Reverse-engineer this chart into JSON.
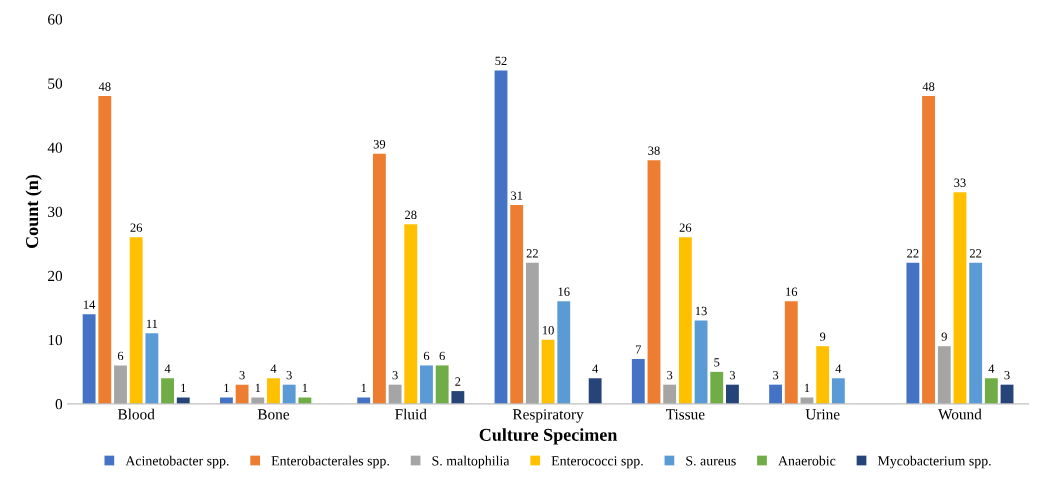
{
  "chart_data": {
    "type": "bar",
    "xlabel": "Culture Specimen",
    "ylabel": "Count (n)",
    "categories": [
      "Blood",
      "Bone",
      "Fluid",
      "Respiratory",
      "Tissue",
      "Urine",
      "Wound"
    ],
    "series": [
      {
        "name": "Acinetobacter spp.",
        "color": "#4472c4",
        "values": [
          14,
          1,
          1,
          52,
          7,
          3,
          22
        ]
      },
      {
        "name": "Enterobacterales spp.",
        "color": "#ed7d31",
        "values": [
          48,
          3,
          39,
          31,
          38,
          16,
          48
        ]
      },
      {
        "name": "S. maltophilia",
        "color": "#a5a5a5",
        "values": [
          6,
          1,
          3,
          22,
          3,
          1,
          9
        ]
      },
      {
        "name": "Enterococci spp.",
        "color": "#ffc000",
        "values": [
          26,
          4,
          28,
          10,
          26,
          9,
          33
        ]
      },
      {
        "name": "S. aureus",
        "color": "#5b9bd5",
        "values": [
          11,
          3,
          6,
          16,
          13,
          4,
          22
        ]
      },
      {
        "name": "Anaerobic",
        "color": "#70ad47",
        "values": [
          4,
          1,
          6,
          null,
          5,
          null,
          4
        ]
      },
      {
        "name": "Mycobacterium spp.",
        "color": "#264478",
        "values": [
          1,
          null,
          2,
          4,
          3,
          null,
          3
        ]
      }
    ],
    "ylim": [
      0,
      60
    ],
    "yticks": [
      0,
      10,
      20,
      30,
      40,
      50,
      60
    ],
    "data_labels": true,
    "grid": false,
    "legend": "bottom"
  }
}
